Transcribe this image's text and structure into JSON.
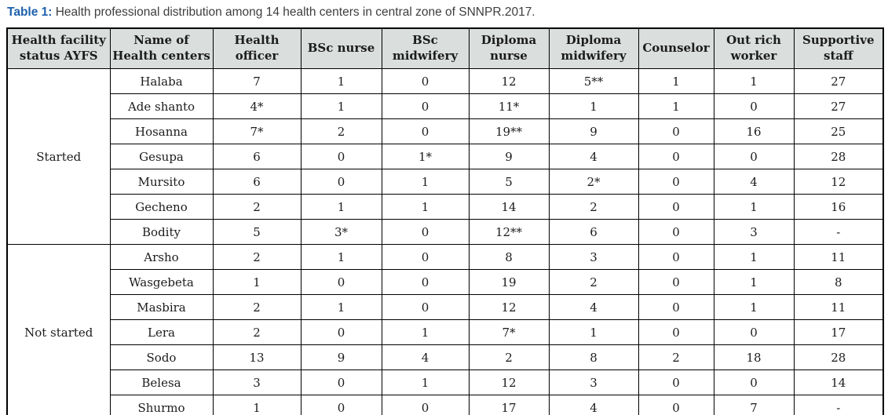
{
  "caption": {
    "label": "Table 1:",
    "text": "Health professional distribution among 14 health centers in central zone of SNNPR.2017."
  },
  "colors": {
    "caption_accent": "#1e61ad",
    "caption_text": "#3e3e3e",
    "header_bg": "#dadedd",
    "border": "#000000",
    "cell_text": "#1c1c1c"
  },
  "table": {
    "columns": [
      "Health facility\nstatus AYFS",
      "Name of\nHealth centers",
      "Health\nofficer",
      "BSc nurse",
      "BSc\nmidwifery",
      "Diploma\nnurse",
      "Diploma\nmidwifery",
      "Counselor",
      "Out rich\nworker",
      "Supportive\nstaff"
    ],
    "groups": [
      {
        "status": "Started",
        "rows": [
          {
            "center": "Halaba",
            "values": [
              "7",
              "1",
              "0",
              "12",
              "5**",
              "1",
              "1",
              "27"
            ]
          },
          {
            "center": "Ade shanto",
            "values": [
              "4*",
              "1",
              "0",
              "11*",
              "1",
              "1",
              "0",
              "27"
            ]
          },
          {
            "center": "Hosanna",
            "values": [
              "7*",
              "2",
              "0",
              "19**",
              "9",
              "0",
              "16",
              "25"
            ]
          },
          {
            "center": "Gesupa",
            "values": [
              "6",
              "0",
              "1*",
              "9",
              "4",
              "0",
              "0",
              "28"
            ]
          },
          {
            "center": "Mursito",
            "values": [
              "6",
              "0",
              "1",
              "5",
              "2*",
              "0",
              "4",
              "12"
            ]
          },
          {
            "center": "Gecheno",
            "values": [
              "2",
              "1",
              "1",
              "14",
              "2",
              "0",
              "1",
              "16"
            ]
          },
          {
            "center": "Bodity",
            "values": [
              "5",
              "3*",
              "0",
              "12**",
              "6",
              "0",
              "3",
              "-"
            ]
          }
        ]
      },
      {
        "status": "Not started",
        "rows": [
          {
            "center": "Arsho",
            "values": [
              "2",
              "1",
              "0",
              "8",
              "3",
              "0",
              "1",
              "11"
            ]
          },
          {
            "center": "Wasgebeta",
            "values": [
              "1",
              "0",
              "0",
              "19",
              "2",
              "0",
              "1",
              "8"
            ]
          },
          {
            "center": "Masbira",
            "values": [
              "2",
              "1",
              "0",
              "12",
              "4",
              "0",
              "1",
              "11"
            ]
          },
          {
            "center": "Lera",
            "values": [
              "2",
              "0",
              "1",
              "7*",
              "1",
              "0",
              "0",
              "17"
            ]
          },
          {
            "center": "Sodo",
            "values": [
              "13",
              "9",
              "4",
              "2",
              "8",
              "2",
              "18",
              "28"
            ]
          },
          {
            "center": "Belesa",
            "values": [
              "3",
              "0",
              "1",
              "12",
              "3",
              "0",
              "0",
              "14"
            ]
          },
          {
            "center": "Shurmo",
            "values": [
              "1",
              "0",
              "0",
              "17",
              "4",
              "0",
              "7",
              "-"
            ]
          }
        ]
      }
    ]
  }
}
